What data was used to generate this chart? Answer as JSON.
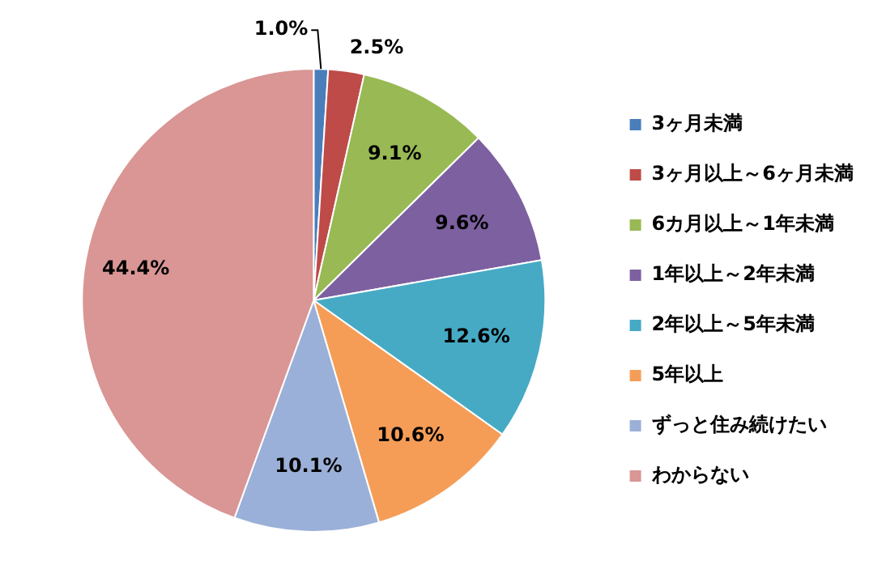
{
  "chart_data": {
    "type": "pie",
    "categories": [
      "3ヶ月未満",
      "3ヶ月以上～6ヶ月未満",
      "6カ月以上～1年未満",
      "1年以上～2年未満",
      "2年以上～5年未満",
      "5年以上",
      "ずっと住み続けたい",
      "わからない"
    ],
    "values": [
      1.0,
      2.5,
      9.1,
      9.6,
      12.6,
      10.6,
      10.1,
      44.4
    ],
    "colors": [
      "#4a7ebb",
      "#be4b48",
      "#98b954",
      "#7d60a0",
      "#46aac5",
      "#f59d56",
      "#9bb0d8",
      "#d99694"
    ],
    "value_labels": [
      "1.0%",
      "2.5%",
      "9.1%",
      "9.6%",
      "12.6%",
      "10.6%",
      "10.1%",
      "44.4%"
    ],
    "legend": "right"
  }
}
